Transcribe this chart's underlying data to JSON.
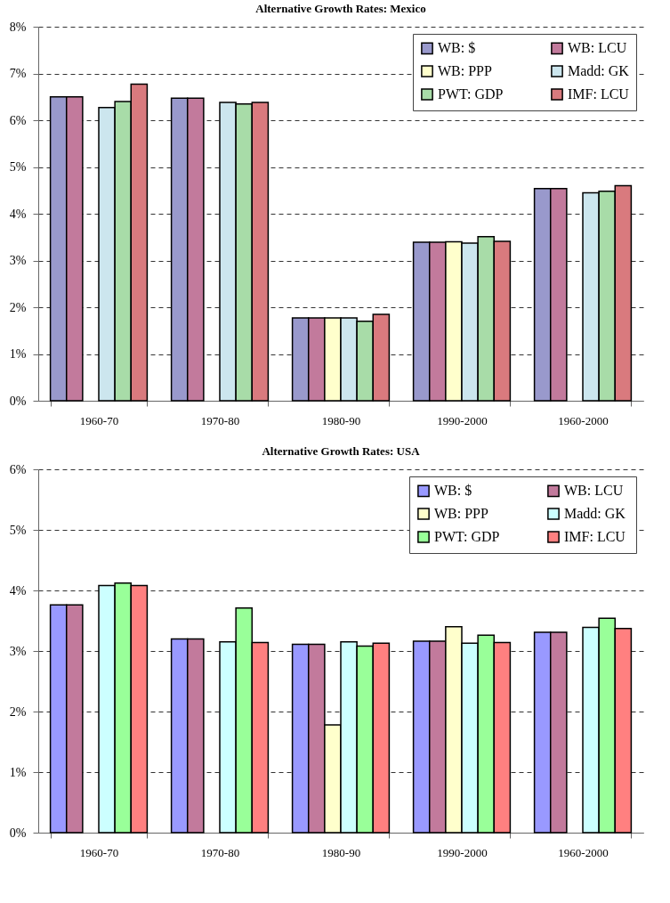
{
  "chart_data": [
    {
      "type": "bar",
      "title": "Alternative Growth Rates: Mexico",
      "categories": [
        "1960-70",
        "1970-80",
        "1980-90",
        "1990-2000",
        "1960-2000"
      ],
      "series": [
        {
          "name": "WB: $",
          "color": "#9999cc",
          "values": [
            6.5,
            6.47,
            1.77,
            3.39,
            4.54
          ]
        },
        {
          "name": "WB: LCU",
          "color": "#c27a9c",
          "values": [
            6.5,
            6.47,
            1.77,
            3.39,
            4.54
          ]
        },
        {
          "name": "WB: PPP",
          "color": "#ffffcc",
          "values": [
            null,
            null,
            1.77,
            3.4,
            null
          ]
        },
        {
          "name": "Madd: GK",
          "color": "#cce6ee",
          "values": [
            6.27,
            6.38,
            1.77,
            3.37,
            4.45
          ]
        },
        {
          "name": "PWT: GDP",
          "color": "#a8dca8",
          "values": [
            6.4,
            6.35,
            1.7,
            3.51,
            4.48
          ]
        },
        {
          "name": "IMF: LCU",
          "color": "#d97a7e",
          "values": [
            6.77,
            6.38,
            1.85,
            3.41,
            4.6
          ]
        }
      ],
      "ylim": [
        0,
        8
      ],
      "yticks": [
        {
          "value": 0,
          "label": "0%"
        },
        {
          "value": 1,
          "label": "1%"
        },
        {
          "value": 2,
          "label": "2%"
        },
        {
          "value": 3,
          "label": "3%"
        },
        {
          "value": 4,
          "label": "4%"
        },
        {
          "value": 5,
          "label": "5%"
        },
        {
          "value": 6,
          "label": "6%"
        },
        {
          "value": 7,
          "label": "7%"
        },
        {
          "value": 8,
          "label": "8%"
        }
      ],
      "grid": "y",
      "legend": "top right"
    },
    {
      "type": "bar",
      "title": "Alternative Growth Rates: USA",
      "categories": [
        "1960-70",
        "1970-80",
        "1980-90",
        "1990-2000",
        "1960-2000"
      ],
      "series": [
        {
          "name": "WB: $",
          "color": "#9999ff",
          "values": [
            3.76,
            3.2,
            3.11,
            3.16,
            3.31
          ]
        },
        {
          "name": "WB: LCU",
          "color": "#c27a9c",
          "values": [
            3.76,
            3.2,
            3.11,
            3.16,
            3.31
          ]
        },
        {
          "name": "WB: PPP",
          "color": "#ffffcc",
          "values": [
            null,
            null,
            1.78,
            3.4,
            null
          ]
        },
        {
          "name": "Madd:  GK",
          "color": "#ccffff",
          "values": [
            4.08,
            3.15,
            3.15,
            3.13,
            3.39
          ]
        },
        {
          "name": "PWT: GDP",
          "color": "#99ff99",
          "values": [
            4.12,
            3.71,
            3.08,
            3.26,
            3.54
          ]
        },
        {
          "name": "IMF: LCU",
          "color": "#ff8080",
          "values": [
            4.08,
            3.14,
            3.13,
            3.14,
            3.37
          ]
        }
      ],
      "ylim": [
        0,
        6
      ],
      "yticks": [
        {
          "value": 0,
          "label": "0%"
        },
        {
          "value": 1,
          "label": "1%"
        },
        {
          "value": 2,
          "label": "2%"
        },
        {
          "value": 3,
          "label": "3%"
        },
        {
          "value": 4,
          "label": "4%"
        },
        {
          "value": 5,
          "label": "5%"
        },
        {
          "value": 6,
          "label": "6%"
        }
      ],
      "grid": "y",
      "legend": "top right"
    }
  ]
}
